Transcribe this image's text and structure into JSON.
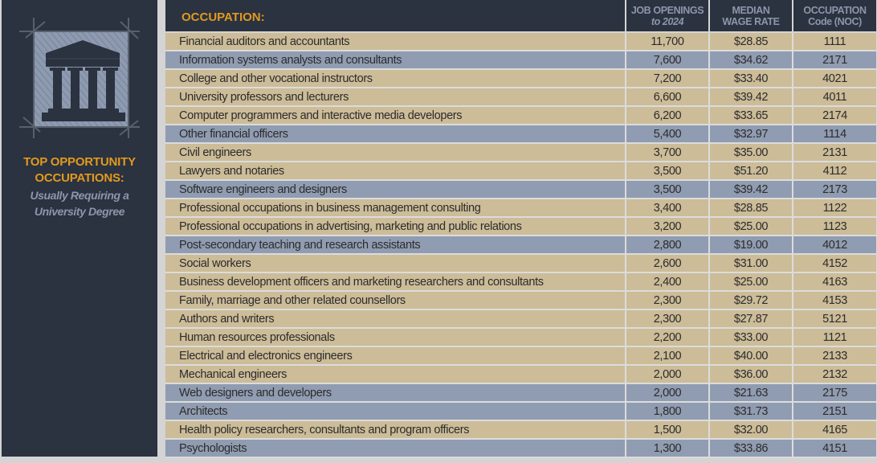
{
  "sidebar": {
    "icon": "university-building-icon",
    "title_line1": "TOP OPPORTUNITY",
    "title_line2": "OCCUPATIONS:",
    "subtitle_line1": "Usually Requiring a",
    "subtitle_line2": "University Degree"
  },
  "colors": {
    "panel": "#2b3240",
    "accent": "#e09a1e",
    "muted_header": "#8d96aa",
    "row_tan": "#ccbc98",
    "row_blue": "#909cb1"
  },
  "table": {
    "headers": {
      "occupation": "OCCUPATION:",
      "jobs_line1": "JOB OPENINGS",
      "jobs_line2": "to 2024",
      "wage_line1": "MEDIAN",
      "wage_line2": "WAGE RATE",
      "noc_line1": "OCCUPATION",
      "noc_line2": "Code (NOC)"
    },
    "rows": [
      {
        "occupation": "Financial auditors and accountants",
        "jobs": "11,700",
        "wage": "$28.85",
        "noc": "1111",
        "style": "tan"
      },
      {
        "occupation": "Information systems analysts and consultants",
        "jobs": "7,600",
        "wage": "$34.62",
        "noc": "2171",
        "style": "blue"
      },
      {
        "occupation": "College and other vocational instructors",
        "jobs": "7,200",
        "wage": "$33.40",
        "noc": "4021",
        "style": "tan"
      },
      {
        "occupation": "University professors and lecturers",
        "jobs": "6,600",
        "wage": "$39.42",
        "noc": "4011",
        "style": "tan"
      },
      {
        "occupation": "Computer programmers and interactive media developers",
        "jobs": "6,200",
        "wage": "$33.65",
        "noc": "2174",
        "style": "tan"
      },
      {
        "occupation": "Other financial officers",
        "jobs": "5,400",
        "wage": "$32.97",
        "noc": "1114",
        "style": "blue"
      },
      {
        "occupation": "Civil engineers",
        "jobs": "3,700",
        "wage": "$35.00",
        "noc": "2131",
        "style": "tan"
      },
      {
        "occupation": "Lawyers and notaries",
        "jobs": "3,500",
        "wage": "$51.20",
        "noc": "4112",
        "style": "tan"
      },
      {
        "occupation": "Software engineers and designers",
        "jobs": "3,500",
        "wage": "$39.42",
        "noc": "2173",
        "style": "blue"
      },
      {
        "occupation": "Professional occupations in business management consulting",
        "jobs": "3,400",
        "wage": "$28.85",
        "noc": "1122",
        "style": "tan"
      },
      {
        "occupation": "Professional occupations in advertising, marketing and public relations",
        "jobs": "3,200",
        "wage": "$25.00",
        "noc": "1123",
        "style": "tan"
      },
      {
        "occupation": "Post-secondary teaching and research assistants",
        "jobs": "2,800",
        "wage": "$19.00",
        "noc": "4012",
        "style": "blue"
      },
      {
        "occupation": "Social workers",
        "jobs": "2,600",
        "wage": "$31.00",
        "noc": "4152",
        "style": "tan"
      },
      {
        "occupation": "Business development officers and marketing researchers and consultants",
        "jobs": "2,400",
        "wage": "$25.00",
        "noc": "4163",
        "style": "tan"
      },
      {
        "occupation": "Family, marriage and other related counsellors",
        "jobs": "2,300",
        "wage": "$29.72",
        "noc": "4153",
        "style": "tan"
      },
      {
        "occupation": "Authors and writers",
        "jobs": "2,300",
        "wage": "$27.87",
        "noc": "5121",
        "style": "tan"
      },
      {
        "occupation": "Human resources professionals",
        "jobs": "2,200",
        "wage": "$33.00",
        "noc": "1121",
        "style": "tan"
      },
      {
        "occupation": "Electrical and electronics engineers",
        "jobs": "2,100",
        "wage": "$40.00",
        "noc": "2133",
        "style": "tan"
      },
      {
        "occupation": "Mechanical engineers",
        "jobs": "2,000",
        "wage": "$36.00",
        "noc": "2132",
        "style": "tan"
      },
      {
        "occupation": "Web designers and developers",
        "jobs": "2,000",
        "wage": "$21.63",
        "noc": "2175",
        "style": "blue"
      },
      {
        "occupation": "Architects",
        "jobs": "1,800",
        "wage": "$31.73",
        "noc": "2151",
        "style": "blue"
      },
      {
        "occupation": "Health policy researchers, consultants and program officers",
        "jobs": "1,500",
        "wage": "$32.00",
        "noc": "4165",
        "style": "tan"
      },
      {
        "occupation": "Psychologists",
        "jobs": "1,300",
        "wage": "$33.86",
        "noc": "4151",
        "style": "blue"
      }
    ]
  }
}
